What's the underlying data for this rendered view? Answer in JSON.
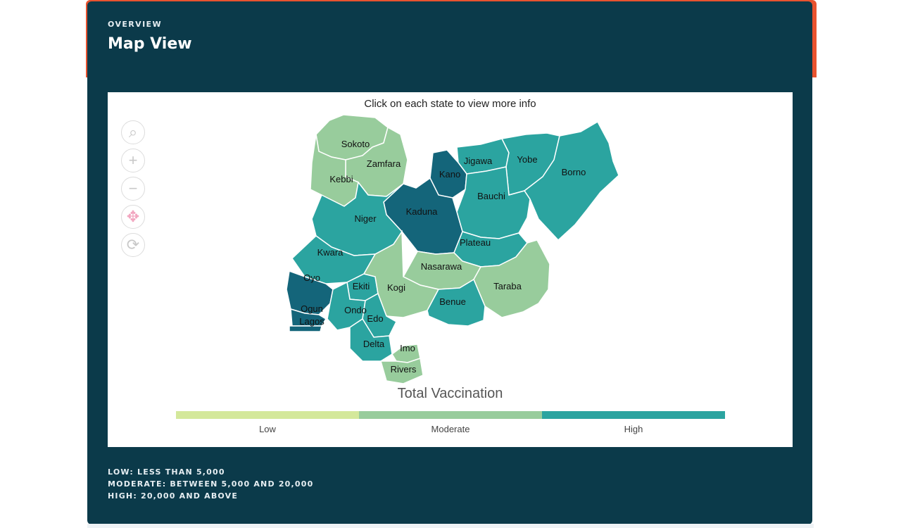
{
  "header": {
    "eyebrow": "OVERVIEW",
    "title": "Map View"
  },
  "map": {
    "instruction": "Click on each state to view more info",
    "controls": [
      {
        "name": "zoom-search-icon",
        "glyph": "⌕"
      },
      {
        "name": "zoom-in-icon",
        "glyph": "+"
      },
      {
        "name": "zoom-out-icon",
        "glyph": "−"
      },
      {
        "name": "pan-icon",
        "glyph": "✥"
      },
      {
        "name": "reset-icon",
        "glyph": "⟳"
      }
    ],
    "levels": {
      "low": "#d4e89b",
      "moderate": "#98cc9c",
      "high": "#2ba4a0",
      "top": "#14657a"
    },
    "states": [
      {
        "name": "Sokoto",
        "level": "moderate"
      },
      {
        "name": "Zamfara",
        "level": "moderate"
      },
      {
        "name": "Kebbi",
        "level": "moderate"
      },
      {
        "name": "Jigawa",
        "level": "high"
      },
      {
        "name": "Yobe",
        "level": "high"
      },
      {
        "name": "Borno",
        "level": "high"
      },
      {
        "name": "Kano",
        "level": "top"
      },
      {
        "name": "Bauchi",
        "level": "high"
      },
      {
        "name": "Kaduna",
        "level": "top"
      },
      {
        "name": "Niger",
        "level": "high"
      },
      {
        "name": "Plateau",
        "level": "high"
      },
      {
        "name": "Kwara",
        "level": "high"
      },
      {
        "name": "Nasarawa",
        "level": "moderate"
      },
      {
        "name": "Oyo",
        "level": "top"
      },
      {
        "name": "Ekiti",
        "level": "high"
      },
      {
        "name": "Kogi",
        "level": "moderate"
      },
      {
        "name": "Taraba",
        "level": "moderate"
      },
      {
        "name": "Ogun",
        "level": "top"
      },
      {
        "name": "Ondo",
        "level": "high"
      },
      {
        "name": "Benue",
        "level": "high"
      },
      {
        "name": "Lagos",
        "level": "top"
      },
      {
        "name": "Edo",
        "level": "high"
      },
      {
        "name": "Delta",
        "level": "high"
      },
      {
        "name": "Imo",
        "level": "moderate"
      },
      {
        "name": "Rivers",
        "level": "moderate"
      }
    ],
    "legend": {
      "title": "Total Vaccination",
      "items": [
        {
          "label": "Low",
          "color": "#d4e89b"
        },
        {
          "label": "Moderate",
          "color": "#98cc9c"
        },
        {
          "label": "High",
          "color": "#2ba4a0"
        }
      ]
    }
  },
  "footnotes": {
    "low": "LOW: LESS THAN 5,000",
    "moderate": "MODERATE: BETWEEN 5,000 AND 20,000",
    "high": "HIGH: 20,000 AND ABOVE"
  }
}
